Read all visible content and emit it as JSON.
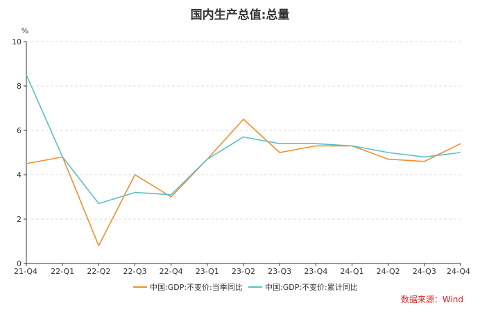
{
  "chart_data": {
    "type": "line",
    "title": "国内生产总值:总量",
    "y_unit": "%",
    "ylim": [
      0,
      10
    ],
    "y_ticks": [
      "0",
      "2",
      "4",
      "6",
      "8",
      "10"
    ],
    "grid": true,
    "legend_position": "bottom",
    "categories": [
      "21-Q4",
      "22-Q1",
      "22-Q2",
      "22-Q3",
      "22-Q4",
      "23-Q1",
      "23-Q2",
      "23-Q3",
      "23-Q4",
      "24-Q1",
      "24-Q2",
      "24-Q3",
      "24-Q4"
    ],
    "series": [
      {
        "name": "中国:GDP:不变价:当季同比",
        "color": "#f28e2b",
        "values": [
          4.5,
          4.8,
          0.8,
          4.0,
          3.0,
          4.7,
          6.5,
          5.0,
          5.3,
          5.3,
          4.7,
          4.6,
          5.4
        ]
      },
      {
        "name": "中国:GDP:不变价:累计同比",
        "color": "#5bbfc9",
        "values": [
          8.5,
          4.8,
          2.7,
          3.2,
          3.1,
          4.7,
          5.7,
          5.4,
          5.4,
          5.3,
          5.0,
          4.8,
          5.0
        ]
      }
    ],
    "source": "数据来源：Wind"
  }
}
